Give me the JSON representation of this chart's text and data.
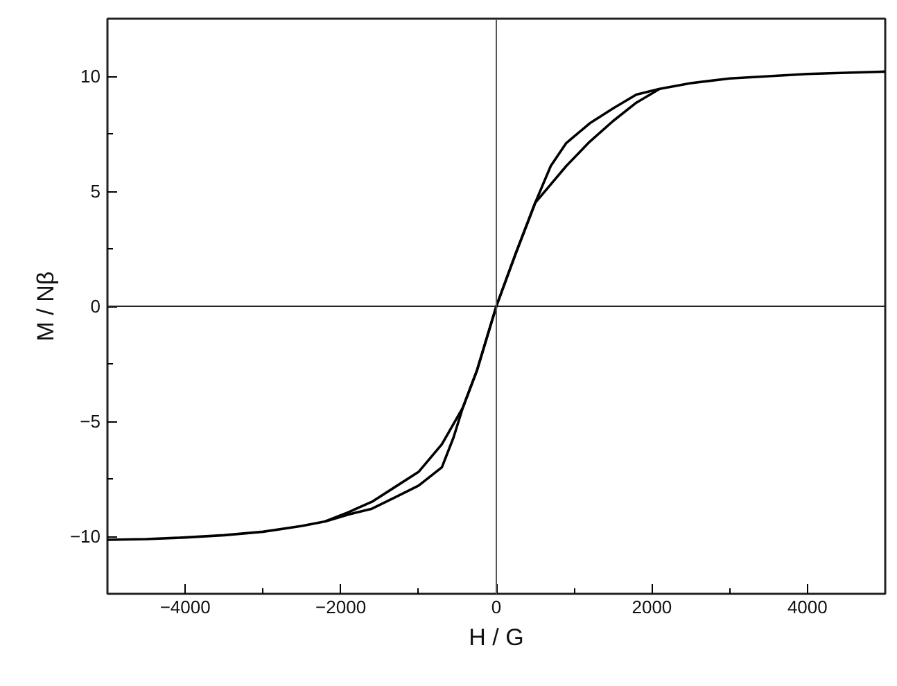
{
  "chart_data": {
    "type": "line",
    "xlabel": "H / G",
    "ylabel": "M / Nβ",
    "xlim": [
      -5000,
      5000
    ],
    "ylim": [
      -12.5,
      12.5
    ],
    "xticks": [
      -4000,
      {
        "value": -3000,
        "label": null
      },
      -2000,
      {
        "value": -1000,
        "label": null
      },
      0,
      {
        "value": 1000,
        "label": null
      },
      2000,
      {
        "value": 3000,
        "label": null
      },
      4000
    ],
    "yticks": [
      {
        "value": -7.5,
        "label": null
      },
      -10,
      -5,
      {
        "value": -2.5,
        "label": null
      },
      0,
      {
        "value": 2.5,
        "label": null
      },
      5,
      {
        "value": 7.5,
        "label": null
      },
      10
    ],
    "series": [
      {
        "color": "#000000",
        "x": [
          -5000,
          -4500,
          -4000,
          -3500,
          -3000,
          -2500,
          -2200,
          -1900,
          -1600,
          -1300,
          -1000,
          -700,
          -550,
          -430,
          -250,
          0,
          250,
          500,
          700,
          900,
          1200,
          1500,
          1800,
          2100,
          2500,
          3000,
          3500,
          4000,
          4500,
          5000
        ],
        "values": [
          -10.15,
          -10.12,
          -10.05,
          -9.95,
          -9.8,
          -9.55,
          -9.35,
          -9.05,
          -8.8,
          -8.3,
          -7.8,
          -7.0,
          -5.7,
          -4.4,
          -2.8,
          0,
          2.3,
          4.5,
          6.1,
          7.1,
          7.95,
          8.6,
          9.2,
          9.45,
          9.7,
          9.9,
          10.0,
          10.1,
          10.15,
          10.2
        ]
      },
      {
        "color": "#000000",
        "x": [
          -2200,
          -1900,
          -1600,
          -1300,
          -1000,
          -700,
          -430,
          -250,
          0,
          250,
          500,
          700,
          900,
          1200,
          1500,
          1800,
          2100
        ],
        "values": [
          -9.35,
          -8.95,
          -8.5,
          -7.85,
          -7.2,
          -6.0,
          -4.4,
          -2.8,
          0,
          2.3,
          4.5,
          5.3,
          6.1,
          7.15,
          8.05,
          8.85,
          9.45
        ]
      }
    ],
    "ref_lines": [
      {
        "axis": "x",
        "value": 0,
        "color": "#555555"
      },
      {
        "axis": "y",
        "value": 0,
        "color": "#222222"
      }
    ],
    "grid": false,
    "line_style": "solid",
    "marker": "none"
  }
}
